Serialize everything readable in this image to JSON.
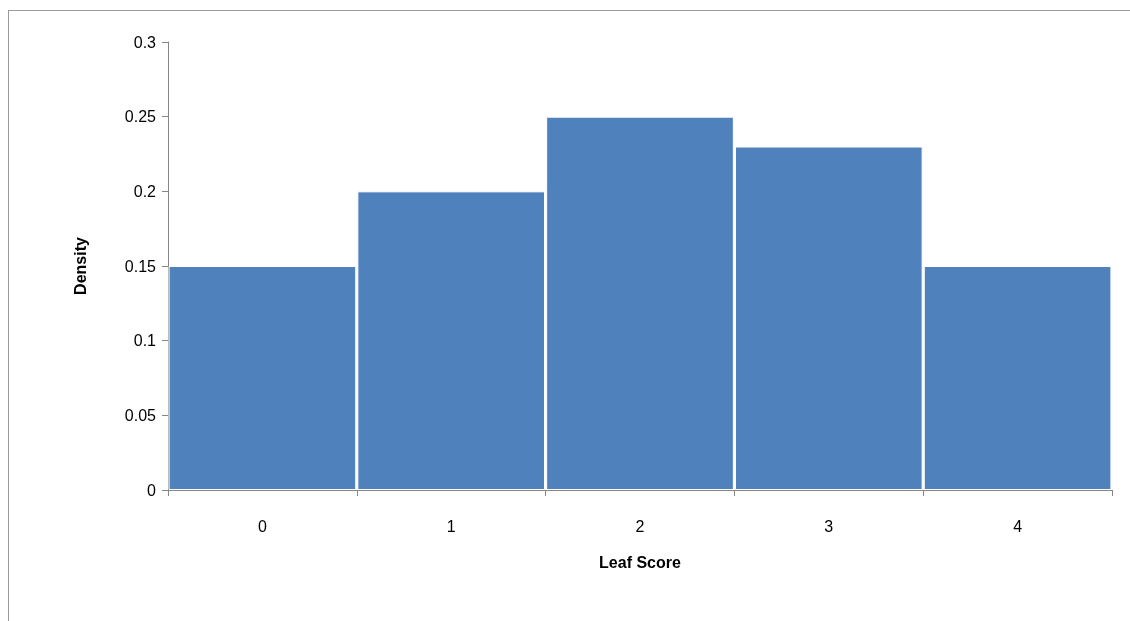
{
  "chart_data": {
    "type": "bar",
    "xlabel": "Leaf Score",
    "ylabel": "Density",
    "categories": [
      "0",
      "1",
      "2",
      "3",
      "4"
    ],
    "values": [
      0.15,
      0.2,
      0.25,
      0.23,
      0.15
    ],
    "color": "#4f81bd",
    "ylim": [
      0,
      0.3
    ],
    "yticks": [
      0,
      0.05,
      0.1,
      0.15,
      0.2,
      0.25,
      0.3
    ],
    "grid": false
  }
}
